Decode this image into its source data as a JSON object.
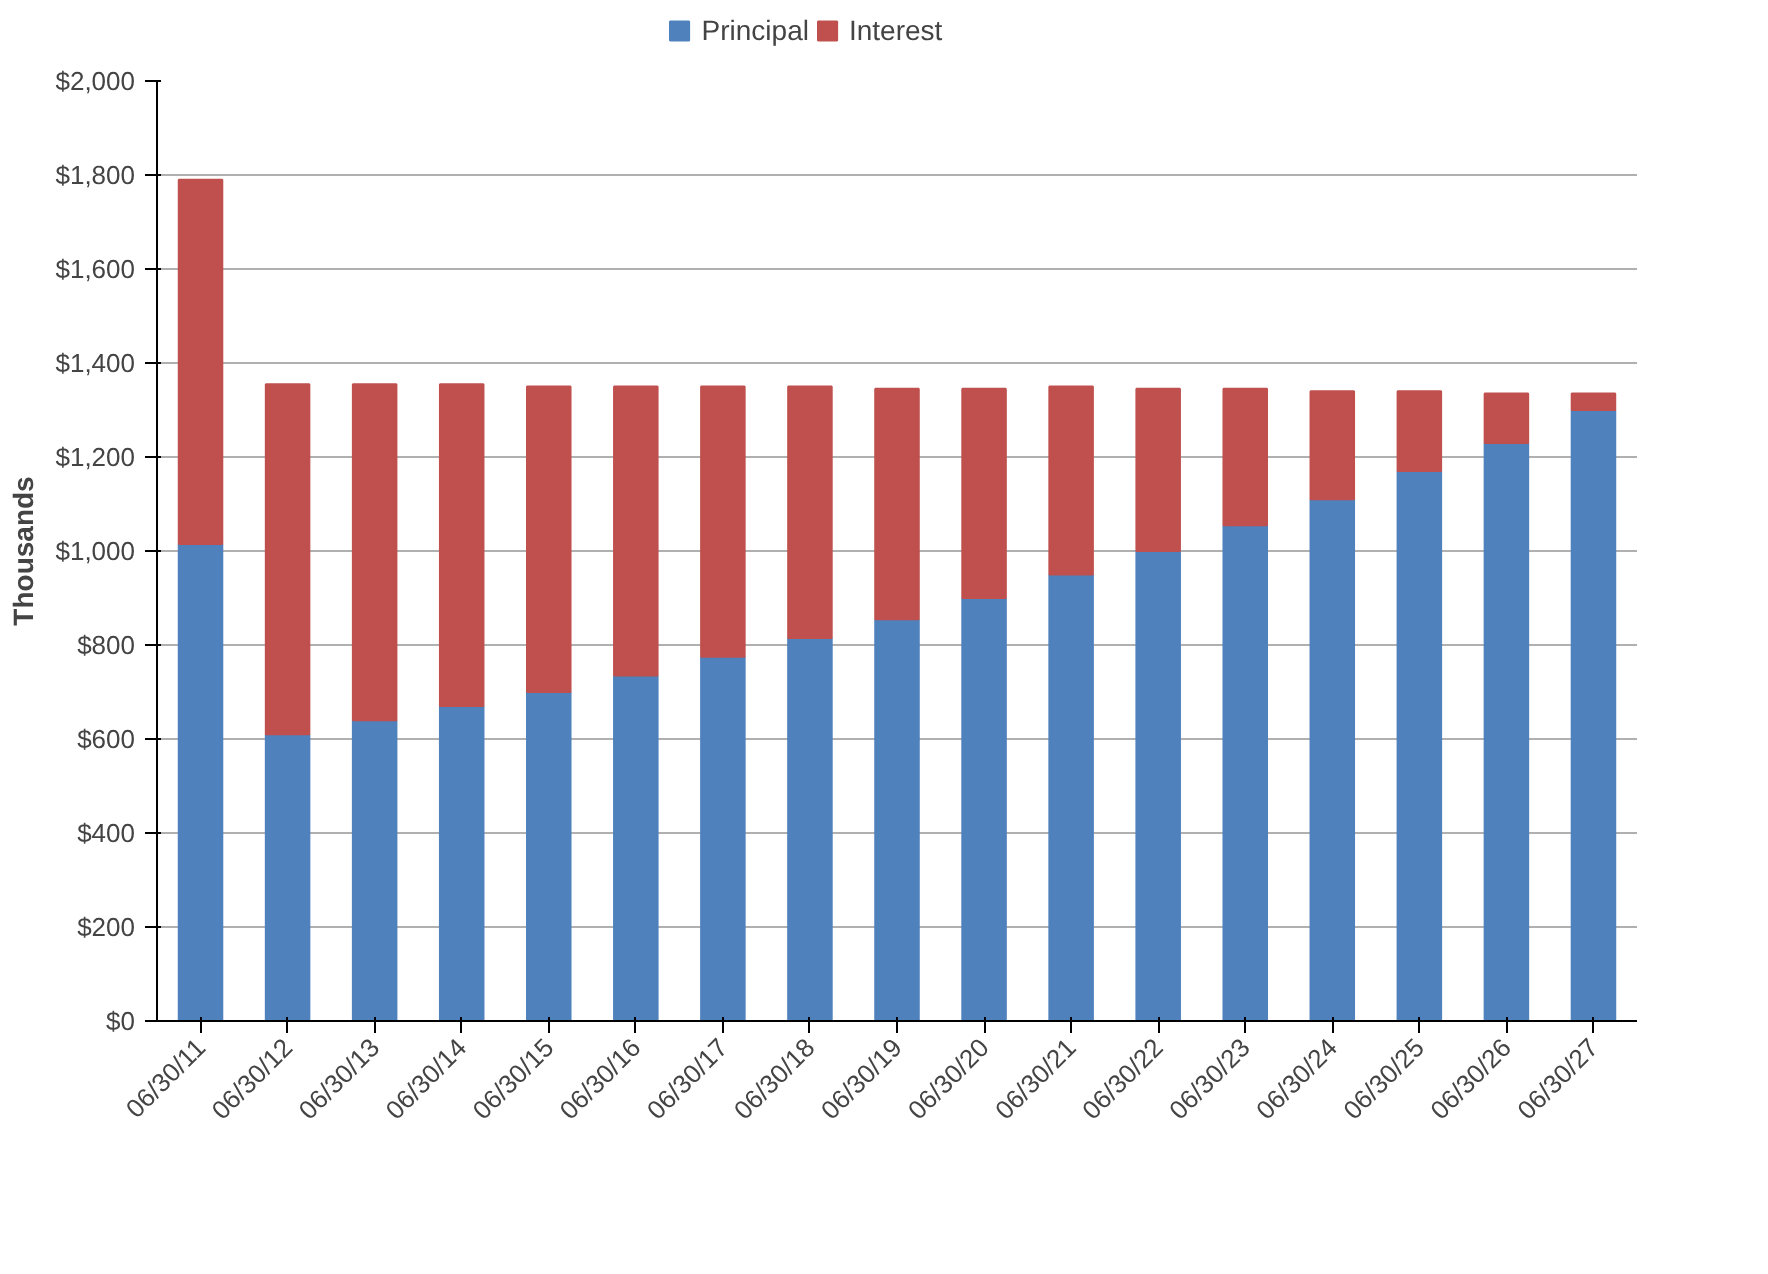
{
  "chart_data": {
    "type": "bar",
    "stacked": true,
    "ylabel": "Thousands",
    "categories": [
      "06/30/11",
      "06/30/12",
      "06/30/13",
      "06/30/14",
      "06/30/15",
      "06/30/16",
      "06/30/17",
      "06/30/18",
      "06/30/19",
      "06/30/20",
      "06/30/21",
      "06/30/22",
      "06/30/23",
      "06/30/24",
      "06/30/25",
      "06/30/26",
      "06/30/27"
    ],
    "series": [
      {
        "name": "Principal",
        "color": "#4f81bd",
        "values": [
          1015,
          610,
          640,
          670,
          700,
          735,
          775,
          815,
          855,
          900,
          950,
          1000,
          1055,
          1110,
          1170,
          1230,
          1300
        ]
      },
      {
        "name": "Interest",
        "color": "#c0504d",
        "values": [
          775,
          745,
          715,
          685,
          650,
          615,
          575,
          535,
          490,
          445,
          400,
          345,
          290,
          230,
          170,
          105,
          35
        ]
      }
    ],
    "ylim": [
      0,
      2000
    ],
    "yticks": [
      {
        "value": 0,
        "label": "$0"
      },
      {
        "value": 200,
        "label": "$200"
      },
      {
        "value": 400,
        "label": "$400"
      },
      {
        "value": 600,
        "label": "$600"
      },
      {
        "value": 800,
        "label": "$800"
      },
      {
        "value": 1000,
        "label": "$1,000"
      },
      {
        "value": 1200,
        "label": "$1,200"
      },
      {
        "value": 1400,
        "label": "$1,400"
      },
      {
        "value": 1600,
        "label": "$1,600"
      },
      {
        "value": 1800,
        "label": "$1,800"
      },
      {
        "value": 2000,
        "label": "$2,000"
      }
    ],
    "grid": "y",
    "legend": "top"
  }
}
